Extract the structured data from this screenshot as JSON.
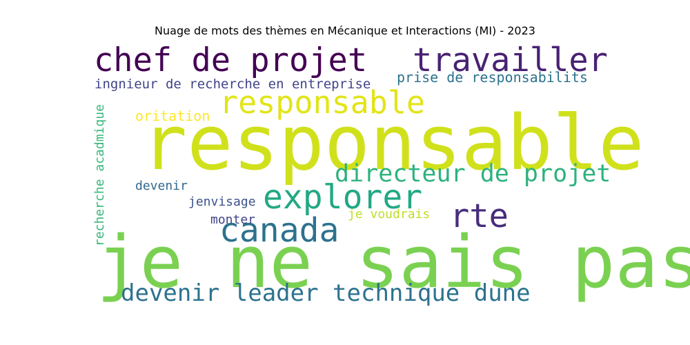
{
  "title": "Nuage de mots des thèmes en Mécanique et Interactions (MI) - 2023",
  "words": [
    {
      "text": "je ne sais pas",
      "color": "#7ad151",
      "orientation": "horizontal"
    },
    {
      "text": "responsable",
      "color": "#d0e11c",
      "orientation": "horizontal"
    },
    {
      "text": "chef de projet",
      "color": "#440154",
      "orientation": "horizontal"
    },
    {
      "text": "travailler",
      "color": "#482173",
      "orientation": "horizontal"
    },
    {
      "text": "responsable",
      "color": "#e2e418",
      "orientation": "horizontal"
    },
    {
      "text": "explorer",
      "color": "#22a884",
      "orientation": "horizontal"
    },
    {
      "text": "canada",
      "color": "#2c728e",
      "orientation": "horizontal"
    },
    {
      "text": "rte",
      "color": "#472d7b",
      "orientation": "horizontal"
    },
    {
      "text": "directeur de projet",
      "color": "#2db27d",
      "orientation": "horizontal"
    },
    {
      "text": "devenir leader technique dune",
      "color": "#2c728e",
      "orientation": "horizontal"
    },
    {
      "text": "ingnieur de recherche en entreprise",
      "color": "#414487",
      "orientation": "horizontal"
    },
    {
      "text": "prise de responsabilits",
      "color": "#2c728e",
      "orientation": "horizontal"
    },
    {
      "text": "oritation",
      "color": "#fde725",
      "orientation": "horizontal"
    },
    {
      "text": "recherche acadmique",
      "color": "#35b779",
      "orientation": "vertical"
    },
    {
      "text": "devenir",
      "color": "#31688e",
      "orientation": "horizontal"
    },
    {
      "text": "jenvisage",
      "color": "#3b528b",
      "orientation": "horizontal"
    },
    {
      "text": "monter",
      "color": "#414487",
      "orientation": "horizontal"
    },
    {
      "text": "je voudrais",
      "color": "#bddf26",
      "orientation": "horizontal"
    }
  ]
}
